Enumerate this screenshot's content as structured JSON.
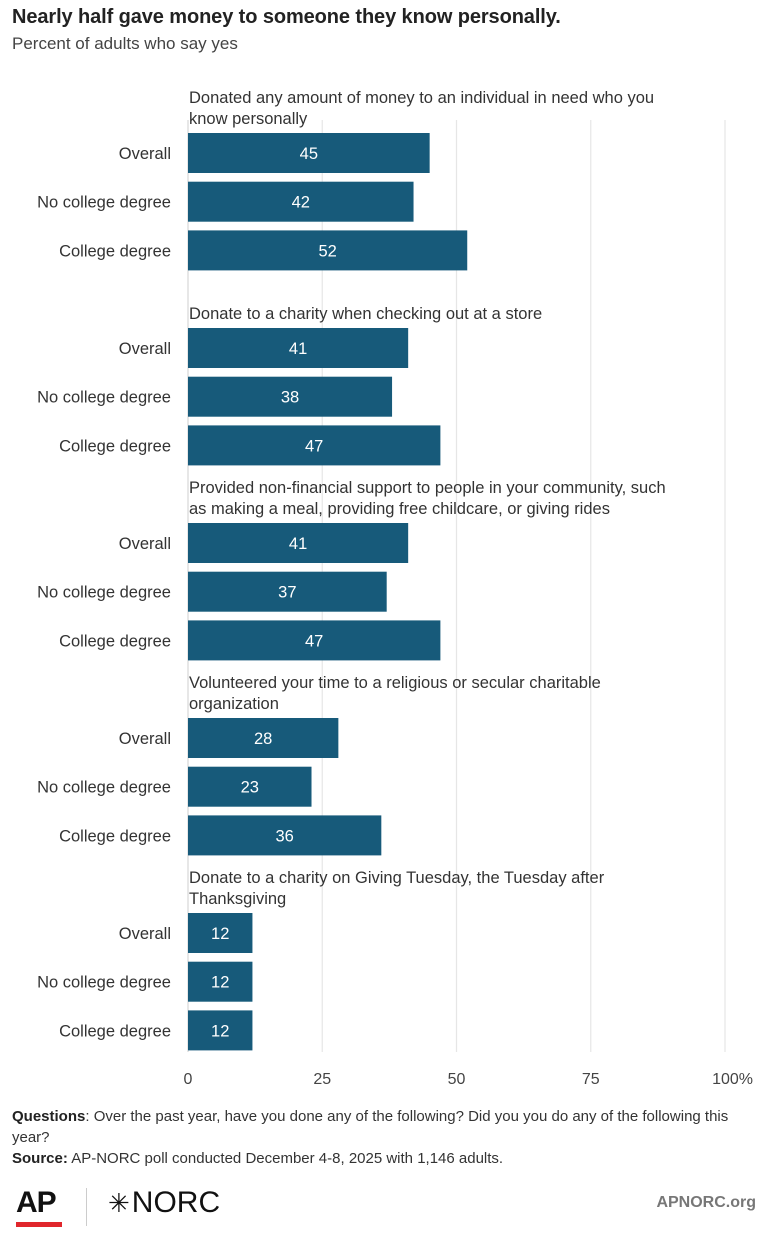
{
  "title": "Nearly half gave money to someone they know personally.",
  "subtitle": "Percent of adults who say yes",
  "chart_data": {
    "type": "bar",
    "orientation": "horizontal",
    "xlim": [
      0,
      100
    ],
    "ticks": [
      "0",
      "25",
      "50",
      "75",
      "100%"
    ],
    "tick_values": [
      0,
      25,
      50,
      75,
      100
    ],
    "grid": true,
    "bar_color": "#175a7a",
    "grid_color": "#e6e6e6",
    "groups": [
      {
        "label": "Donated any amount of money to an individual in need who you know personally",
        "label_lines": [
          "Donated any amount of money to an individual in need who you",
          "know personally"
        ],
        "bars": [
          {
            "category": "Overall",
            "value": 45
          },
          {
            "category": "No college degree",
            "value": 42
          },
          {
            "category": "College degree",
            "value": 52
          }
        ]
      },
      {
        "label": "Donate to a charity when checking out at a store",
        "label_lines": [
          "Donate to a charity when checking out at a store"
        ],
        "bars": [
          {
            "category": "Overall",
            "value": 41
          },
          {
            "category": "No college degree",
            "value": 38
          },
          {
            "category": "College degree",
            "value": 47
          }
        ]
      },
      {
        "label": "Provided non-financial support to people in your community, such as making a meal, providing free childcare, or giving rides",
        "label_lines": [
          "Provided non-financial support to people in your community, such",
          "as making a meal, providing free childcare, or giving rides"
        ],
        "bars": [
          {
            "category": "Overall",
            "value": 41
          },
          {
            "category": "No college degree",
            "value": 37
          },
          {
            "category": "College degree",
            "value": 47
          }
        ]
      },
      {
        "label": "Volunteered your time to a religious or secular charitable organization",
        "label_lines": [
          "Volunteered your time to a religious or secular charitable",
          "organization"
        ],
        "bars": [
          {
            "category": "Overall",
            "value": 28
          },
          {
            "category": "No college degree",
            "value": 23
          },
          {
            "category": "College degree",
            "value": 36
          }
        ]
      },
      {
        "label": "Donate to a charity on Giving Tuesday, the Tuesday after Thanksgiving",
        "label_lines": [
          "Donate to a charity on Giving Tuesday, the Tuesday after",
          "Thanksgiving"
        ],
        "bars": [
          {
            "category": "Overall",
            "value": 12
          },
          {
            "category": "No college degree",
            "value": 12
          },
          {
            "category": "College degree",
            "value": 12
          }
        ]
      }
    ]
  },
  "footer": {
    "questions_label": "Questions",
    "questions_text": ": Over the past year, have you done any of the following? Did you you do any of the following this year?",
    "source_label": "Source:",
    "source_text": " AP-NORC poll conducted December 4-8, 2025 with 1,146 adults."
  },
  "logos": {
    "ap": "AP",
    "norc_star": "✳",
    "norc": "NORC",
    "site": "APNORC.org"
  }
}
